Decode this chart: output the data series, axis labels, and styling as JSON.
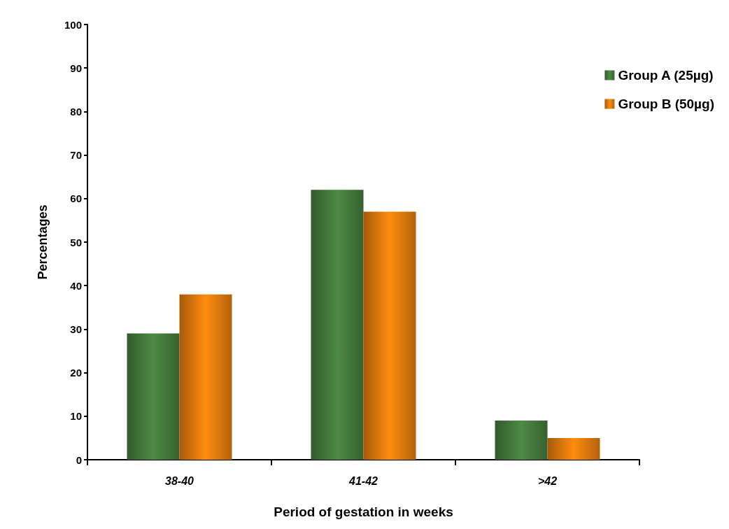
{
  "chart_data": {
    "type": "bar",
    "xlabel": "Period of gestation in weeks",
    "ylabel": "Percentages",
    "categories": [
      "38-40",
      "41-42",
      ">42"
    ],
    "series": [
      {
        "name": "Group A (25µg)",
        "color": "#4e8a45",
        "values": [
          29,
          62,
          9
        ]
      },
      {
        "name": "Group B (50µg)",
        "color": "#ff8c0f",
        "values": [
          38,
          57,
          5
        ]
      }
    ],
    "ylim": [
      0,
      100
    ],
    "yticks": [
      0,
      10,
      20,
      30,
      40,
      50,
      60,
      70,
      80,
      90,
      100
    ],
    "grid": false,
    "legend": "top right"
  }
}
